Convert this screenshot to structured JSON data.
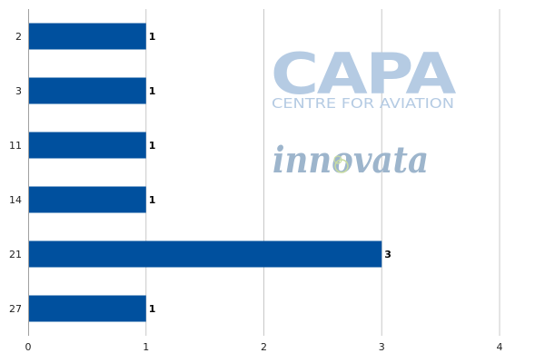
{
  "chart_data": {
    "type": "bar",
    "orientation": "horizontal",
    "categories": [
      "2",
      "3",
      "11",
      "14",
      "21",
      "27"
    ],
    "values": [
      1,
      1,
      1,
      1,
      3,
      1
    ],
    "data_labels": [
      "1",
      "1",
      "1",
      "1",
      "3",
      "1"
    ],
    "x_ticks": [
      "0",
      "1",
      "2",
      "3",
      "4"
    ],
    "xlim": [
      0,
      4
    ],
    "grid": "vertical",
    "legend": "none",
    "bar_color": "#00509e",
    "grid_color": "#c8c8c8",
    "axis_color": "#a0a0a0"
  },
  "watermark": {
    "capa_logo": "CAPA",
    "capa_subtitle": "CENTRE FOR AVIATION",
    "innovata_logo": "innovata",
    "colors": {
      "capa": "#b5cbe3",
      "innovata": "#9db5cc",
      "accent": "#c8dca0"
    }
  }
}
